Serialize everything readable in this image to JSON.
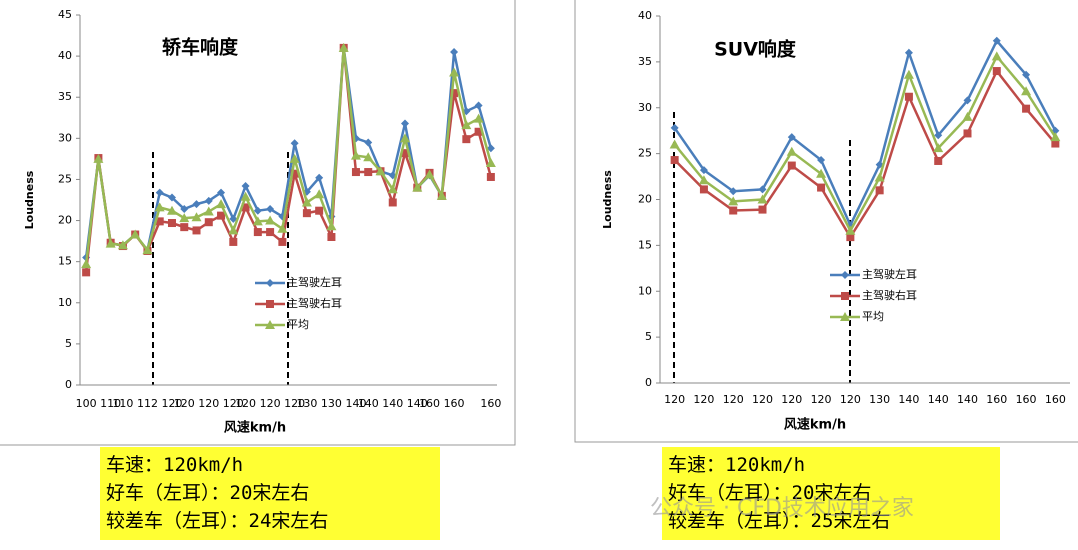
{
  "chart_data": [
    {
      "type": "line",
      "title": "轿车响度",
      "y_label": "Loudness",
      "x_label": "风速km/h",
      "categories": [
        "100",
        null,
        "110",
        "110",
        null,
        "112",
        null,
        "120",
        "120",
        null,
        "120",
        null,
        "120",
        "120",
        null,
        "120",
        null,
        "120",
        "130",
        null,
        "130",
        null,
        "140",
        "140",
        null,
        "140",
        null,
        "140",
        "160",
        null,
        "160",
        null,
        null,
        "160"
      ],
      "ylim": [
        0,
        45
      ],
      "yticks": [
        0,
        5,
        10,
        15,
        20,
        25,
        30,
        35,
        40,
        45
      ],
      "grid": false,
      "series": [
        {
          "name": "主驾驶左耳",
          "color": "#4a7ebb",
          "marker": "diamond",
          "values": [
            15.5,
            27.5,
            17.2,
            17.0,
            18.3,
            16.4,
            23.4,
            22.8,
            21.4,
            22.0,
            22.4,
            23.4,
            20.2,
            24.2,
            21.2,
            21.4,
            20.5,
            29.4,
            23.5,
            25.2,
            20.5,
            41.0,
            30.0,
            29.5,
            26.0,
            25.5,
            31.8,
            24.0,
            25.5,
            23.0,
            40.5,
            33.3,
            34.0,
            28.8
          ]
        },
        {
          "name": "主驾驶右耳",
          "color": "#be4b48",
          "marker": "square",
          "values": [
            13.7,
            27.6,
            17.3,
            16.9,
            18.3,
            16.3,
            19.9,
            19.7,
            19.2,
            18.8,
            19.8,
            20.6,
            17.4,
            21.6,
            18.6,
            18.6,
            17.4,
            25.7,
            20.9,
            21.2,
            18.0,
            41.0,
            25.9,
            25.9,
            26.0,
            22.2,
            28.2,
            24.0,
            25.8,
            23.0,
            35.5,
            29.9,
            30.8,
            25.3
          ]
        },
        {
          "name": "平均",
          "color": "#98b954",
          "marker": "triangle",
          "values": [
            14.7,
            27.5,
            17.2,
            17.0,
            18.3,
            16.4,
            21.6,
            21.2,
            20.3,
            20.4,
            21.1,
            22.0,
            18.8,
            22.9,
            19.9,
            20.0,
            19.0,
            27.5,
            22.2,
            23.2,
            19.3,
            41.0,
            27.9,
            27.7,
            26.0,
            23.8,
            30.0,
            24.0,
            25.6,
            23.0,
            38.0,
            31.6,
            32.4,
            27.0
          ]
        }
      ]
    },
    {
      "type": "line",
      "title": "SUV响度",
      "y_label": "Loudness",
      "x_label": "风速km/h",
      "categories": [
        "120",
        "120",
        "120",
        "120",
        "120",
        "120",
        "120",
        "130",
        "140",
        "140",
        "140",
        "160",
        "160",
        "160"
      ],
      "ylim": [
        0,
        40
      ],
      "yticks": [
        0,
        5,
        10,
        15,
        20,
        25,
        30,
        35,
        40
      ],
      "grid": false,
      "series": [
        {
          "name": "主驾驶左耳",
          "color": "#4a7ebb",
          "marker": "diamond",
          "values": [
            27.8,
            23.2,
            20.9,
            21.1,
            26.8,
            24.3,
            17.2,
            23.8,
            36.0,
            27.0,
            30.8,
            37.3,
            33.6,
            27.5
          ]
        },
        {
          "name": "主驾驶右耳",
          "color": "#be4b48",
          "marker": "square",
          "values": [
            24.3,
            21.1,
            18.8,
            18.9,
            23.7,
            21.3,
            15.9,
            21.0,
            31.2,
            24.2,
            27.2,
            34.0,
            29.9,
            26.1
          ]
        },
        {
          "name": "平均",
          "color": "#98b954",
          "marker": "triangle",
          "values": [
            26.0,
            22.1,
            19.8,
            20.0,
            25.2,
            22.8,
            16.6,
            22.4,
            33.6,
            25.6,
            29.0,
            35.6,
            31.8,
            26.8
          ]
        }
      ]
    }
  ],
  "notes": [
    [
      "车速：120km/h",
      "好车（左耳）：20宋左右",
      "较差车（左耳）：24宋左右"
    ],
    [
      "车速：120km/h",
      "好车（左耳）：20宋左右",
      "较差车（左耳）：25宋左右"
    ]
  ],
  "watermark": "公众号 · CFD技术应用之家"
}
